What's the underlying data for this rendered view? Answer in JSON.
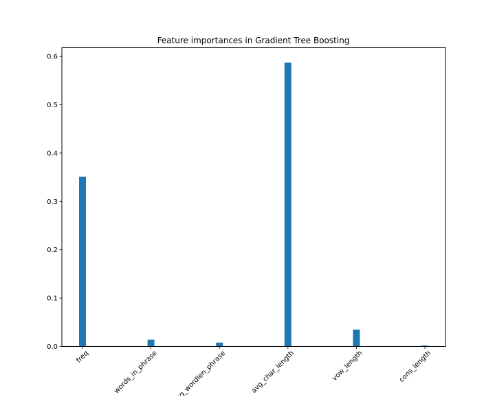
{
  "chart_data": {
    "type": "bar",
    "title": "Feature importances in Gradient Tree Boosting",
    "xlabel": "",
    "ylabel": "",
    "categories": [
      "freq",
      "words_in_phrase",
      "avg_wordlen_phrase",
      "avg_char_length",
      "vow_length",
      "cons_length"
    ],
    "values": [
      0.351,
      0.014,
      0.008,
      0.587,
      0.035,
      0.002
    ],
    "ylim": [
      0,
      0.618
    ],
    "yticks": [
      "0.0",
      "0.1",
      "0.2",
      "0.3",
      "0.4",
      "0.5",
      "0.6"
    ],
    "bar_color": "#1f77b4",
    "grid": false,
    "legend": "none"
  }
}
